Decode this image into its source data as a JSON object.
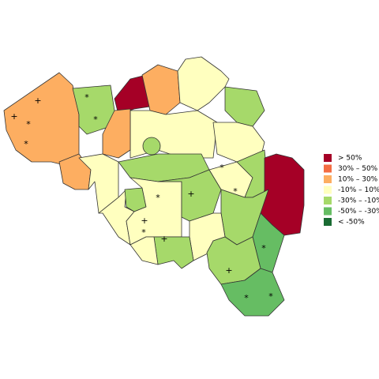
{
  "legend": [
    {
      "label": ">  50%",
      "color": "#a50026"
    },
    {
      "label": "30%  –   50%",
      "color": "#f46d43"
    },
    {
      "label": "10%  –   30%",
      "color": "#fdae61"
    },
    {
      "label": "-10%  –   10%",
      "color": "#ffffbf"
    },
    {
      "label": "-30%  –  -10%",
      "color": "#a6d96a"
    },
    {
      "label": "-50%  –  -30%",
      "color": "#66bd63"
    },
    {
      "label": "< -50%",
      "color": "#1a6b33"
    }
  ],
  "markers": [
    "*",
    "+"
  ]
}
